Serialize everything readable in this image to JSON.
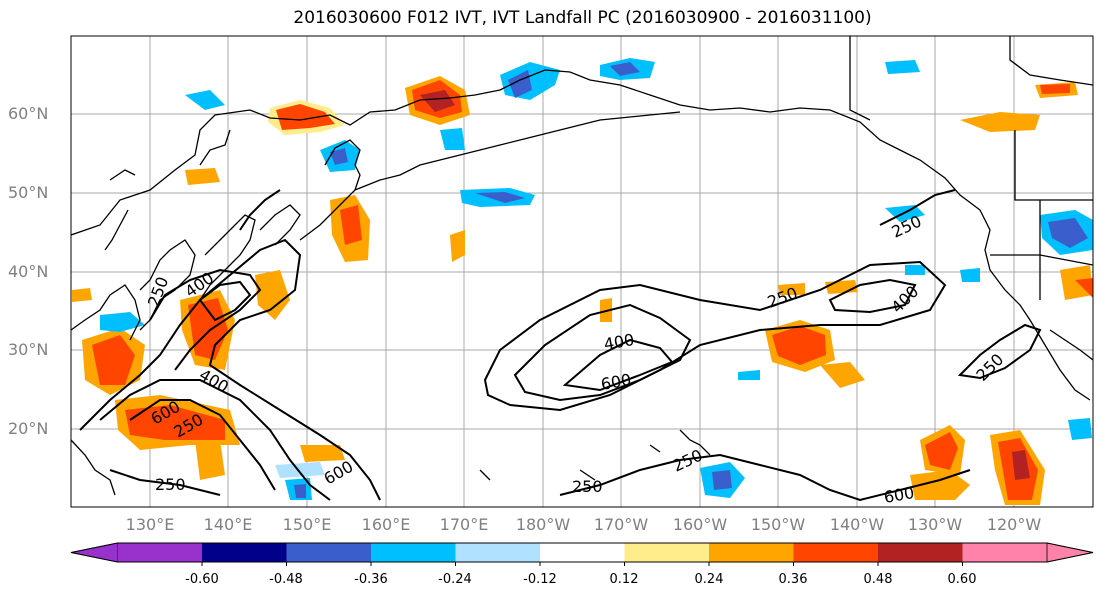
{
  "title": "2016030600 F012 IVT, IVT Landfall PC (2016030900 - 2016031100)",
  "map": {
    "lat_labels": [
      "60°N",
      "50°N",
      "40°N",
      "30°N",
      "20°N"
    ],
    "lon_labels": [
      "130°E",
      "140°E",
      "150°E",
      "160°E",
      "170°E",
      "180°W",
      "170°W",
      "160°W",
      "150°W",
      "140°W",
      "130°W",
      "120°W"
    ],
    "contour_labels": [
      "250",
      "400",
      "600",
      "250",
      "400",
      "600",
      "250",
      "400",
      "250",
      "250",
      "250",
      "600",
      "400",
      "250",
      "600",
      "250"
    ]
  },
  "colorbar": {
    "colors": [
      "#9932cc",
      "#00008b",
      "#3a5fcd",
      "#00bfff",
      "#b0e2ff",
      "#ffffff",
      "#ffec8b",
      "#ffa500",
      "#ff4500",
      "#b22222",
      "#ff82ab"
    ],
    "tick_labels": [
      "-0.60",
      "-0.48",
      "-0.36",
      "-0.24",
      "-0.12",
      "0.12",
      "0.24",
      "0.36",
      "0.48",
      "0.60"
    ]
  }
}
